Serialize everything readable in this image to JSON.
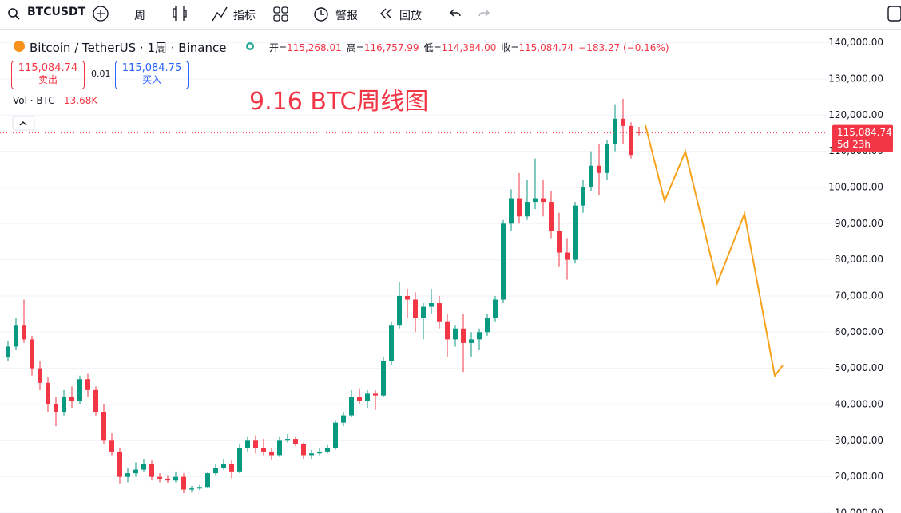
{
  "toolbar": {
    "symbol": "BTCUSDT",
    "interval": "周",
    "indicators": "指标",
    "alert": "警报",
    "replay": "回放"
  },
  "chart_data": {
    "type": "candlestick",
    "title": "Bitcoin / TetherUS · 1周 · Binance",
    "ohlc_legend": [
      {
        "label": "开=",
        "value": "115,268.01"
      },
      {
        "label": "高=",
        "value": "116,757.99"
      },
      {
        "label": "低=",
        "value": "114,384.00"
      },
      {
        "label": "收=",
        "value": "115,084.74"
      }
    ],
    "change": "−183.27 (−0.16%)",
    "sell": {
      "price": "115,084.74",
      "label": "卖出"
    },
    "spread": "0.01",
    "buy": {
      "price": "115,084.75",
      "label": "买入"
    },
    "volume_label": "Vol · BTC",
    "volume_value": "13.68K",
    "annotation": "9.16 BTC周线图",
    "last_price": {
      "value": 115084.74,
      "label": "115,084.74"
    },
    "countdown": "5d 23h",
    "colors": {
      "up": "#089981",
      "down": "#f23645"
    },
    "candles": [
      [
        53000,
        57500,
        52000,
        56000
      ],
      [
        56000,
        64000,
        55000,
        62000
      ],
      [
        62000,
        69000,
        57000,
        58000
      ],
      [
        58000,
        59000,
        48000,
        50000
      ],
      [
        50000,
        52000,
        44000,
        46000
      ],
      [
        46000,
        47500,
        38000,
        40000
      ],
      [
        40000,
        42000,
        34000,
        38000
      ],
      [
        38000,
        44000,
        37000,
        42000
      ],
      [
        42000,
        45000,
        39000,
        41000
      ],
      [
        41000,
        48000,
        40000,
        47000
      ],
      [
        47000,
        48500,
        42000,
        44000
      ],
      [
        44000,
        45000,
        37000,
        38000
      ],
      [
        38000,
        40000,
        29000,
        30000
      ],
      [
        30000,
        32000,
        26000,
        27000
      ],
      [
        27000,
        28000,
        18000,
        20000
      ],
      [
        20000,
        22500,
        18500,
        21000
      ],
      [
        21000,
        24000,
        20000,
        22000
      ],
      [
        22000,
        25000,
        21500,
        23500
      ],
      [
        23500,
        24500,
        19000,
        20000
      ],
      [
        20000,
        21000,
        18500,
        19500
      ],
      [
        19500,
        20500,
        18200,
        19000
      ],
      [
        19000,
        21500,
        18500,
        20000
      ],
      [
        20000,
        21000,
        15500,
        16500
      ],
      [
        16500,
        17500,
        15700,
        16800
      ],
      [
        16800,
        17800,
        16300,
        17000
      ],
      [
        17000,
        21500,
        16800,
        21000
      ],
      [
        21000,
        23500,
        20500,
        22500
      ],
      [
        22500,
        25000,
        22000,
        23500
      ],
      [
        23500,
        24500,
        19600,
        21500
      ],
      [
        21500,
        29000,
        21000,
        28000
      ],
      [
        28000,
        31000,
        27000,
        30000
      ],
      [
        30000,
        31500,
        26500,
        28000
      ],
      [
        28000,
        30500,
        26000,
        27000
      ],
      [
        27000,
        28000,
        24800,
        26000
      ],
      [
        26000,
        31000,
        25500,
        30000
      ],
      [
        30000,
        31800,
        29500,
        30500
      ],
      [
        30500,
        31000,
        28500,
        29000
      ],
      [
        29000,
        29500,
        25000,
        26000
      ],
      [
        26000,
        27500,
        25000,
        26500
      ],
      [
        26500,
        28000,
        26000,
        27000
      ],
      [
        27000,
        28800,
        26500,
        28000
      ],
      [
        28000,
        35500,
        27500,
        35000
      ],
      [
        35000,
        38000,
        34000,
        37000
      ],
      [
        37000,
        44000,
        36500,
        42000
      ],
      [
        42000,
        44500,
        40000,
        41000
      ],
      [
        41000,
        44000,
        39000,
        43000
      ],
      [
        43000,
        44000,
        38500,
        42500
      ],
      [
        42500,
        53000,
        42000,
        52000
      ],
      [
        52000,
        63000,
        51000,
        62000
      ],
      [
        62000,
        73800,
        61000,
        70000
      ],
      [
        70000,
        72000,
        64000,
        69000
      ],
      [
        69000,
        71000,
        60000,
        64000
      ],
      [
        64000,
        68000,
        58000,
        67000
      ],
      [
        67000,
        72000,
        65000,
        68000
      ],
      [
        68000,
        70000,
        61000,
        63000
      ],
      [
        63000,
        65000,
        53000,
        58000
      ],
      [
        58000,
        62000,
        56000,
        61000
      ],
      [
        61000,
        65000,
        49000,
        57000
      ],
      [
        57000,
        60000,
        53000,
        58000
      ],
      [
        58000,
        61000,
        55000,
        60000
      ],
      [
        60000,
        65000,
        59000,
        64000
      ],
      [
        64000,
        70000,
        63000,
        69000
      ],
      [
        69000,
        91000,
        68000,
        90000
      ],
      [
        90000,
        99500,
        88000,
        97000
      ],
      [
        97000,
        104000,
        90000,
        92000
      ],
      [
        92000,
        102000,
        91000,
        96000
      ],
      [
        96000,
        108000,
        94000,
        97000
      ],
      [
        97000,
        102000,
        92000,
        96000
      ],
      [
        96000,
        99000,
        86000,
        88000
      ],
      [
        88000,
        93000,
        78000,
        82000
      ],
      [
        82000,
        86000,
        74500,
        80000
      ],
      [
        80000,
        96000,
        79000,
        95000
      ],
      [
        95000,
        102000,
        93000,
        100000
      ],
      [
        100000,
        110000,
        99000,
        106000
      ],
      [
        106000,
        112000,
        98000,
        104000
      ],
      [
        104000,
        113000,
        102000,
        112000
      ],
      [
        112000,
        123000,
        110000,
        119000
      ],
      [
        119000,
        124500,
        112000,
        117000
      ],
      [
        117000,
        118000,
        108000,
        109000
      ],
      [
        115268.01,
        116757.99,
        114384,
        115084.74
      ]
    ],
    "ylim": [
      10000,
      143000
    ],
    "yticks": [
      {
        "value": 10000,
        "label": "10,000.00"
      },
      {
        "value": 20000,
        "label": "20,000.00"
      },
      {
        "value": 30000,
        "label": "30,000.00"
      },
      {
        "value": 40000,
        "label": "40,000.00"
      },
      {
        "value": 50000,
        "label": "50,000.00"
      },
      {
        "value": 60000,
        "label": "60,000.00"
      },
      {
        "value": 70000,
        "label": "70,000.00"
      },
      {
        "value": 80000,
        "label": "80,000.00"
      },
      {
        "value": 90000,
        "label": "90,000.00"
      },
      {
        "value": 100000,
        "label": "100,000.00"
      },
      {
        "value": 110000,
        "label": "110,000.00"
      },
      {
        "value": 120000,
        "label": "120,000.00"
      },
      {
        "value": 130000,
        "label": "130,000.00"
      },
      {
        "value": 140000,
        "label": "140,000.00"
      }
    ],
    "grid": true
  }
}
